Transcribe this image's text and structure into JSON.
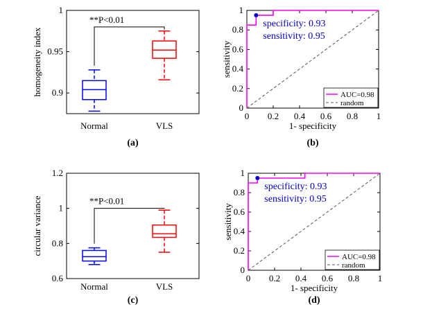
{
  "colors": {
    "normal": "#0000ff",
    "vls": "#ff0000",
    "roc": "#ff00ff",
    "random": "#555555",
    "axis": "#000000",
    "annot": "#0000cc"
  },
  "chart_data": [
    {
      "panel": "a",
      "type": "box",
      "panel_label": "(a)",
      "ylabel": "homogeneity index",
      "ylim": [
        0.875,
        1.0
      ],
      "yticks": [
        0.9,
        0.95,
        1
      ],
      "ytick_labels": [
        "0.9",
        "0.95",
        "1"
      ],
      "categories": [
        "Normal",
        "VLS"
      ],
      "boxes": [
        {
          "name": "Normal",
          "min": 0.878,
          "q1": 0.892,
          "median": 0.904,
          "q3": 0.915,
          "max": 0.928
        },
        {
          "name": "VLS",
          "min": 0.916,
          "q1": 0.942,
          "median": 0.952,
          "q3": 0.963,
          "max": 0.975
        }
      ],
      "significance": {
        "text": "**P<0.01",
        "bracket_y": 0.98
      }
    },
    {
      "panel": "b",
      "type": "line",
      "panel_label": "(b)",
      "xlabel": "1- specificity",
      "ylabel": "sensitivity",
      "xlim": [
        0,
        1
      ],
      "ylim": [
        0,
        1
      ],
      "xticks": [
        0,
        0.2,
        0.4,
        0.6,
        0.8,
        1
      ],
      "xtick_labels": [
        "0",
        "0.2",
        "0.4",
        "0.6",
        "0.8",
        "1"
      ],
      "yticks": [
        0,
        0.2,
        0.4,
        0.6,
        0.8,
        1
      ],
      "ytick_labels": [
        "0",
        "0.2",
        "0.4",
        "0.6",
        "0.8",
        "1"
      ],
      "series": [
        {
          "name": "AUC=0.98",
          "style": "solid",
          "x": [
            0,
            0,
            0.07,
            0.07,
            0.2,
            0.2,
            1
          ],
          "y": [
            0,
            0.85,
            0.85,
            0.95,
            0.95,
            1,
            1
          ]
        },
        {
          "name": "random",
          "style": "dashed",
          "x": [
            0,
            1
          ],
          "y": [
            0,
            1
          ]
        }
      ],
      "operating_point": {
        "x": 0.07,
        "y": 0.95
      },
      "annotations": [
        "specificity: 0.93",
        "sensitivity: 0.95"
      ],
      "legend": [
        "AUC=0.98",
        "random"
      ],
      "legend_position": "bottom-right"
    },
    {
      "panel": "c",
      "type": "box",
      "panel_label": "(c)",
      "ylabel": "circular variance",
      "ylim": [
        0.6,
        1.2
      ],
      "yticks": [
        0.6,
        0.8,
        1,
        1.2
      ],
      "ytick_labels": [
        "0.6",
        "0.8",
        "1",
        "1.2"
      ],
      "categories": [
        "Normal",
        "VLS"
      ],
      "boxes": [
        {
          "name": "Normal",
          "min": 0.68,
          "q1": 0.7,
          "median": 0.725,
          "q3": 0.76,
          "max": 0.775
        },
        {
          "name": "VLS",
          "min": 0.75,
          "q1": 0.835,
          "median": 0.855,
          "q3": 0.905,
          "max": 0.99
        }
      ],
      "significance": {
        "text": "**P<0.01",
        "bracket_y": 1.0
      }
    },
    {
      "panel": "d",
      "type": "line",
      "panel_label": "(d)",
      "xlabel": "1- specificity",
      "ylabel": "sensitivity",
      "xlim": [
        0,
        1
      ],
      "ylim": [
        0,
        1
      ],
      "xticks": [
        0,
        0.2,
        0.4,
        0.6,
        0.8,
        1
      ],
      "xtick_labels": [
        "0",
        "0.2",
        "0.4",
        "0.6",
        "0.8",
        "1"
      ],
      "yticks": [
        0,
        0.2,
        0.4,
        0.6,
        0.8,
        1
      ],
      "ytick_labels": [
        "0",
        "0.2",
        "0.4",
        "0.6",
        "0.8",
        "1"
      ],
      "series": [
        {
          "name": "AUC=0.98",
          "style": "solid",
          "x": [
            0,
            0,
            0.07,
            0.07,
            0.43,
            0.43,
            1
          ],
          "y": [
            0,
            0.9,
            0.9,
            0.95,
            0.95,
            1,
            1
          ]
        },
        {
          "name": "random",
          "style": "dashed",
          "x": [
            0,
            1
          ],
          "y": [
            0,
            1
          ]
        }
      ],
      "operating_point": {
        "x": 0.07,
        "y": 0.95
      },
      "annotations": [
        "specificity: 0.93",
        "sensitivity: 0.95"
      ],
      "legend": [
        "AUC=0.98",
        "random"
      ],
      "legend_position": "bottom-right"
    }
  ]
}
